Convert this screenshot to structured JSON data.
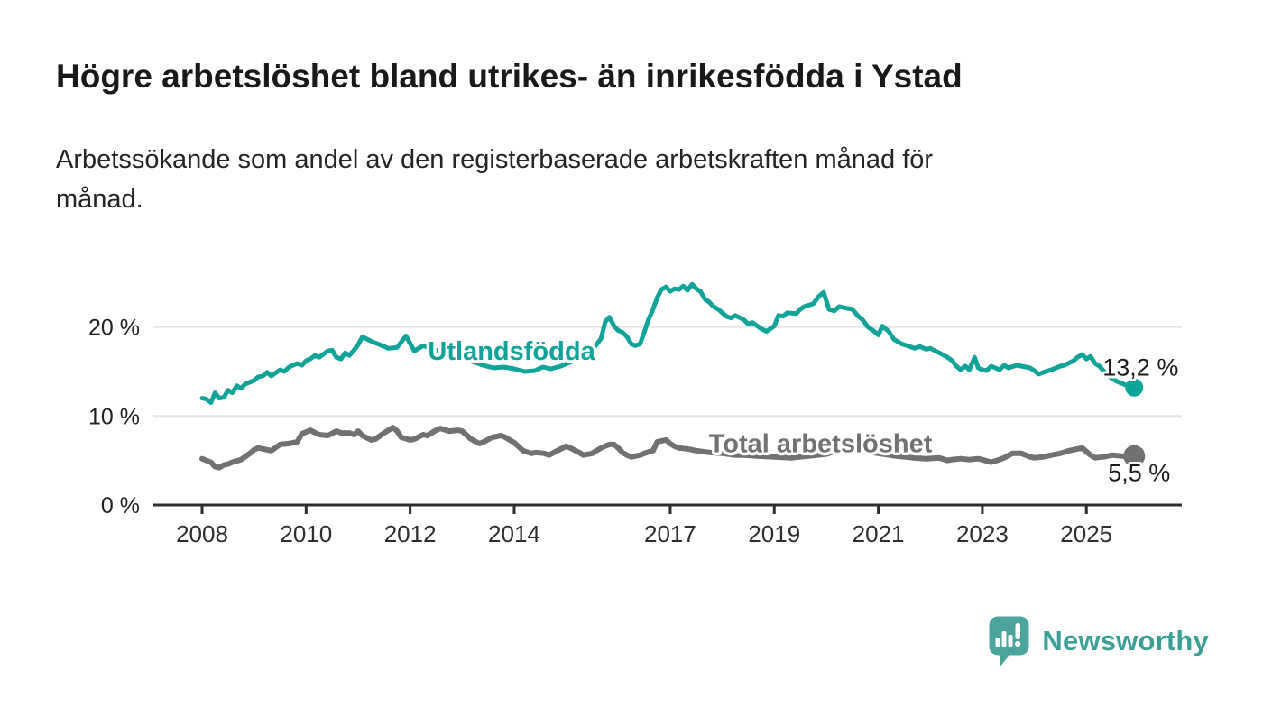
{
  "title": "Högre arbetslöshet bland utrikes- än inrikesfödda i Ystad",
  "subtitle_lines": [
    "Arbetssökande som andel av den registerbaserade arbetskraften månad för",
    "månad."
  ],
  "branding": {
    "name": "Newsworthy",
    "logo_icon": "newsworthy-speech-bubble-chart-icon",
    "wordmark_color": "#3b9f96",
    "icon_color": "#4ba59c"
  },
  "chart_data": {
    "type": "line",
    "title": "Högre arbetslöshet bland utrikes- än inrikesfödda i Ystad",
    "subtitle": "Arbetssökande som andel av den registerbaserade arbetskraften månad för månad.",
    "unit": "%",
    "grid": true,
    "x_axis": {
      "ticks": [
        2008,
        2010,
        2012,
        2014,
        2017,
        2019,
        2021,
        2023,
        2025
      ],
      "labels": [
        "2008",
        "2010",
        "2012",
        "2014",
        "2017",
        "2019",
        "2021",
        "2023",
        "2025"
      ]
    },
    "y_axis": {
      "ticks": [
        0,
        10,
        20
      ],
      "labels": [
        "0 %",
        "10 %",
        "20 %"
      ],
      "range": [
        0,
        26.5
      ]
    },
    "series": [
      {
        "name": "Utlandsfödda",
        "color": "#10a39a",
        "line_width": 5,
        "end_label": "13,2 %",
        "end_value": 13.2,
        "inline_label": {
          "text": "Utlandsfödda",
          "x": 2013.95,
          "y": 17.3
        },
        "points": [
          [
            2008.0,
            12.0
          ],
          [
            2008.08,
            11.9
          ],
          [
            2008.17,
            11.5
          ],
          [
            2008.25,
            12.6
          ],
          [
            2008.33,
            12.0
          ],
          [
            2008.42,
            12.1
          ],
          [
            2008.5,
            12.9
          ],
          [
            2008.58,
            12.6
          ],
          [
            2008.67,
            13.4
          ],
          [
            2008.75,
            13.1
          ],
          [
            2008.83,
            13.6
          ],
          [
            2008.92,
            13.8
          ],
          [
            2009.0,
            14.0
          ],
          [
            2009.08,
            14.4
          ],
          [
            2009.17,
            14.5
          ],
          [
            2009.25,
            14.9
          ],
          [
            2009.33,
            14.5
          ],
          [
            2009.5,
            15.2
          ],
          [
            2009.58,
            15.0
          ],
          [
            2009.67,
            15.5
          ],
          [
            2009.83,
            15.9
          ],
          [
            2009.92,
            15.7
          ],
          [
            2010.0,
            16.2
          ],
          [
            2010.08,
            16.4
          ],
          [
            2010.17,
            16.8
          ],
          [
            2010.25,
            16.6
          ],
          [
            2010.42,
            17.3
          ],
          [
            2010.5,
            17.4
          ],
          [
            2010.58,
            16.6
          ],
          [
            2010.67,
            16.4
          ],
          [
            2010.75,
            17.1
          ],
          [
            2010.83,
            16.8
          ],
          [
            2010.92,
            17.4
          ],
          [
            2011.0,
            18.0
          ],
          [
            2011.08,
            18.9
          ],
          [
            2011.25,
            18.4
          ],
          [
            2011.42,
            18.0
          ],
          [
            2011.58,
            17.6
          ],
          [
            2011.75,
            17.7
          ],
          [
            2011.92,
            19.0
          ],
          [
            2012.08,
            17.3
          ],
          [
            2012.25,
            17.9
          ],
          [
            2012.5,
            17.4
          ],
          [
            2012.75,
            16.9
          ],
          [
            2013.0,
            16.5
          ],
          [
            2013.2,
            16.1
          ],
          [
            2013.4,
            15.7
          ],
          [
            2013.6,
            15.4
          ],
          [
            2013.8,
            15.5
          ],
          [
            2014.0,
            15.3
          ],
          [
            2014.2,
            15.0
          ],
          [
            2014.4,
            15.1
          ],
          [
            2014.55,
            15.5
          ],
          [
            2014.7,
            15.3
          ],
          [
            2014.9,
            15.6
          ],
          [
            2015.1,
            16.1
          ],
          [
            2015.3,
            16.7
          ],
          [
            2015.5,
            17.4
          ],
          [
            2015.67,
            18.7
          ],
          [
            2015.75,
            20.6
          ],
          [
            2015.83,
            21.1
          ],
          [
            2015.92,
            20.1
          ],
          [
            2016.0,
            19.6
          ],
          [
            2016.08,
            19.4
          ],
          [
            2016.17,
            18.9
          ],
          [
            2016.25,
            18.1
          ],
          [
            2016.33,
            17.9
          ],
          [
            2016.42,
            18.1
          ],
          [
            2016.5,
            19.4
          ],
          [
            2016.58,
            20.8
          ],
          [
            2016.67,
            22.0
          ],
          [
            2016.75,
            23.3
          ],
          [
            2016.83,
            24.2
          ],
          [
            2016.92,
            24.5
          ],
          [
            2017.0,
            24.0
          ],
          [
            2017.08,
            24.3
          ],
          [
            2017.17,
            24.2
          ],
          [
            2017.25,
            24.6
          ],
          [
            2017.33,
            24.1
          ],
          [
            2017.42,
            24.8
          ],
          [
            2017.5,
            24.3
          ],
          [
            2017.58,
            24.0
          ],
          [
            2017.67,
            23.1
          ],
          [
            2017.75,
            22.8
          ],
          [
            2017.83,
            22.3
          ],
          [
            2017.92,
            22.0
          ],
          [
            2018.08,
            21.2
          ],
          [
            2018.17,
            21.0
          ],
          [
            2018.25,
            21.3
          ],
          [
            2018.42,
            20.8
          ],
          [
            2018.5,
            20.3
          ],
          [
            2018.58,
            20.5
          ],
          [
            2018.75,
            19.8
          ],
          [
            2018.85,
            19.5
          ],
          [
            2019.0,
            20.1
          ],
          [
            2019.08,
            21.3
          ],
          [
            2019.17,
            21.2
          ],
          [
            2019.25,
            21.6
          ],
          [
            2019.42,
            21.5
          ],
          [
            2019.5,
            22.0
          ],
          [
            2019.58,
            22.3
          ],
          [
            2019.75,
            22.6
          ],
          [
            2019.85,
            23.4
          ],
          [
            2019.95,
            23.9
          ],
          [
            2020.05,
            22.0
          ],
          [
            2020.15,
            21.8
          ],
          [
            2020.25,
            22.3
          ],
          [
            2020.4,
            22.1
          ],
          [
            2020.5,
            22.0
          ],
          [
            2020.6,
            21.3
          ],
          [
            2020.7,
            20.8
          ],
          [
            2020.8,
            20.0
          ],
          [
            2020.9,
            19.6
          ],
          [
            2021.0,
            19.1
          ],
          [
            2021.08,
            20.1
          ],
          [
            2021.2,
            19.5
          ],
          [
            2021.3,
            18.6
          ],
          [
            2021.45,
            18.1
          ],
          [
            2021.6,
            17.8
          ],
          [
            2021.7,
            17.6
          ],
          [
            2021.8,
            17.8
          ],
          [
            2021.92,
            17.5
          ],
          [
            2022.0,
            17.6
          ],
          [
            2022.17,
            17.1
          ],
          [
            2022.33,
            16.6
          ],
          [
            2022.42,
            16.2
          ],
          [
            2022.5,
            15.6
          ],
          [
            2022.58,
            15.2
          ],
          [
            2022.67,
            15.6
          ],
          [
            2022.75,
            15.2
          ],
          [
            2022.85,
            16.6
          ],
          [
            2022.92,
            15.4
          ],
          [
            2023.0,
            15.2
          ],
          [
            2023.08,
            15.1
          ],
          [
            2023.17,
            15.6
          ],
          [
            2023.33,
            15.2
          ],
          [
            2023.42,
            15.7
          ],
          [
            2023.5,
            15.4
          ],
          [
            2023.67,
            15.7
          ],
          [
            2023.75,
            15.6
          ],
          [
            2023.92,
            15.4
          ],
          [
            2024.0,
            15.1
          ],
          [
            2024.08,
            14.7
          ],
          [
            2024.17,
            14.9
          ],
          [
            2024.33,
            15.2
          ],
          [
            2024.5,
            15.6
          ],
          [
            2024.58,
            15.7
          ],
          [
            2024.75,
            16.2
          ],
          [
            2024.83,
            16.6
          ],
          [
            2024.92,
            16.9
          ],
          [
            2025.0,
            16.4
          ],
          [
            2025.08,
            16.7
          ],
          [
            2025.17,
            15.9
          ],
          [
            2025.25,
            15.6
          ],
          [
            2025.42,
            14.5
          ],
          [
            2025.58,
            13.9
          ],
          [
            2025.75,
            13.5
          ],
          [
            2025.83,
            13.3
          ],
          [
            2025.92,
            13.2
          ]
        ]
      },
      {
        "name": "Total arbetslöshet",
        "color": "#727072",
        "line_width": 6,
        "end_label": "5,5 %",
        "end_value": 5.5,
        "inline_label": {
          "text": "Total arbetslöshet",
          "x": 2019.89,
          "y": 6.95
        },
        "points": [
          [
            2008.0,
            5.2
          ],
          [
            2008.08,
            5.0
          ],
          [
            2008.17,
            4.8
          ],
          [
            2008.25,
            4.3
          ],
          [
            2008.33,
            4.2
          ],
          [
            2008.42,
            4.5
          ],
          [
            2008.5,
            4.6
          ],
          [
            2008.58,
            4.8
          ],
          [
            2008.75,
            5.1
          ],
          [
            2008.92,
            5.8
          ],
          [
            2009.0,
            6.2
          ],
          [
            2009.08,
            6.4
          ],
          [
            2009.17,
            6.3
          ],
          [
            2009.33,
            6.1
          ],
          [
            2009.5,
            6.8
          ],
          [
            2009.67,
            6.9
          ],
          [
            2009.83,
            7.1
          ],
          [
            2009.92,
            8.0
          ],
          [
            2010.0,
            8.2
          ],
          [
            2010.08,
            8.4
          ],
          [
            2010.25,
            7.9
          ],
          [
            2010.42,
            7.8
          ],
          [
            2010.58,
            8.3
          ],
          [
            2010.67,
            8.1
          ],
          [
            2010.83,
            8.1
          ],
          [
            2010.92,
            7.9
          ],
          [
            2011.0,
            8.3
          ],
          [
            2011.08,
            7.8
          ],
          [
            2011.25,
            7.3
          ],
          [
            2011.33,
            7.4
          ],
          [
            2011.5,
            8.1
          ],
          [
            2011.67,
            8.7
          ],
          [
            2011.75,
            8.3
          ],
          [
            2011.83,
            7.6
          ],
          [
            2012.0,
            7.3
          ],
          [
            2012.08,
            7.4
          ],
          [
            2012.25,
            7.9
          ],
          [
            2012.33,
            7.8
          ],
          [
            2012.5,
            8.4
          ],
          [
            2012.58,
            8.6
          ],
          [
            2012.75,
            8.3
          ],
          [
            2012.92,
            8.4
          ],
          [
            2013.0,
            8.3
          ],
          [
            2013.17,
            7.4
          ],
          [
            2013.33,
            6.9
          ],
          [
            2013.42,
            7.1
          ],
          [
            2013.58,
            7.6
          ],
          [
            2013.75,
            7.8
          ],
          [
            2013.83,
            7.6
          ],
          [
            2014.0,
            7.0
          ],
          [
            2014.17,
            6.1
          ],
          [
            2014.33,
            5.8
          ],
          [
            2014.42,
            5.9
          ],
          [
            2014.58,
            5.8
          ],
          [
            2014.67,
            5.6
          ],
          [
            2014.83,
            6.1
          ],
          [
            2015.0,
            6.6
          ],
          [
            2015.08,
            6.4
          ],
          [
            2015.25,
            5.9
          ],
          [
            2015.33,
            5.6
          ],
          [
            2015.5,
            5.8
          ],
          [
            2015.58,
            6.1
          ],
          [
            2015.67,
            6.4
          ],
          [
            2015.83,
            6.8
          ],
          [
            2015.92,
            6.8
          ],
          [
            2016.0,
            6.4
          ],
          [
            2016.08,
            5.9
          ],
          [
            2016.17,
            5.6
          ],
          [
            2016.25,
            5.4
          ],
          [
            2016.42,
            5.6
          ],
          [
            2016.55,
            5.9
          ],
          [
            2016.67,
            6.1
          ],
          [
            2016.75,
            7.1
          ],
          [
            2016.92,
            7.3
          ],
          [
            2017.0,
            6.9
          ],
          [
            2017.08,
            6.6
          ],
          [
            2017.17,
            6.4
          ],
          [
            2017.33,
            6.3
          ],
          [
            2017.5,
            6.1
          ],
          [
            2017.75,
            5.9
          ],
          [
            2018.0,
            5.8
          ],
          [
            2018.25,
            5.6
          ],
          [
            2018.42,
            5.6
          ],
          [
            2018.67,
            5.5
          ],
          [
            2019.0,
            5.4
          ],
          [
            2019.33,
            5.3
          ],
          [
            2019.67,
            5.5
          ],
          [
            2020.0,
            5.7
          ],
          [
            2020.25,
            6.2
          ],
          [
            2020.42,
            6.3
          ],
          [
            2020.67,
            6.1
          ],
          [
            2021.0,
            5.8
          ],
          [
            2021.33,
            5.5
          ],
          [
            2021.67,
            5.3
          ],
          [
            2021.92,
            5.2
          ],
          [
            2022.17,
            5.3
          ],
          [
            2022.33,
            5.0
          ],
          [
            2022.42,
            5.1
          ],
          [
            2022.58,
            5.2
          ],
          [
            2022.75,
            5.1
          ],
          [
            2022.92,
            5.2
          ],
          [
            2023.0,
            5.1
          ],
          [
            2023.17,
            4.8
          ],
          [
            2023.33,
            5.1
          ],
          [
            2023.42,
            5.3
          ],
          [
            2023.58,
            5.8
          ],
          [
            2023.75,
            5.8
          ],
          [
            2023.92,
            5.4
          ],
          [
            2024.0,
            5.3
          ],
          [
            2024.17,
            5.4
          ],
          [
            2024.33,
            5.6
          ],
          [
            2024.5,
            5.8
          ],
          [
            2024.67,
            6.1
          ],
          [
            2024.83,
            6.3
          ],
          [
            2024.92,
            6.4
          ],
          [
            2025.08,
            5.6
          ],
          [
            2025.17,
            5.3
          ],
          [
            2025.33,
            5.4
          ],
          [
            2025.5,
            5.6
          ],
          [
            2025.67,
            5.5
          ],
          [
            2025.83,
            5.4
          ],
          [
            2025.92,
            5.5
          ]
        ]
      }
    ]
  }
}
